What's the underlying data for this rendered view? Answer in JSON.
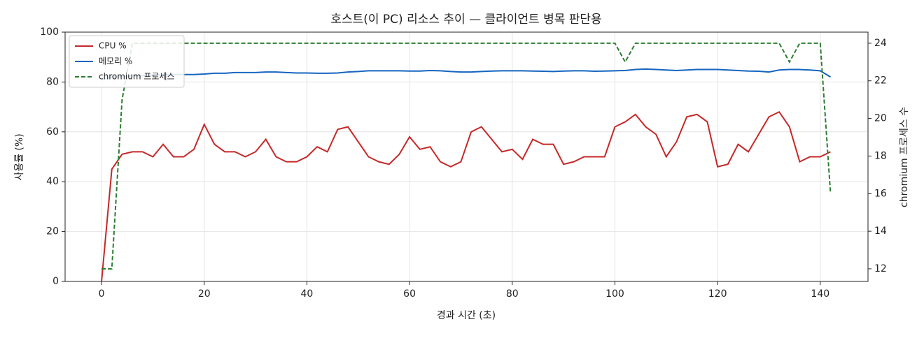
{
  "chart_data": {
    "type": "line",
    "title": "호스트(이 PC) 리소스 추이 — 클라이언트 병목 판단용",
    "x_label": "경과 시간 (초)",
    "y_label": "사용률 (%)",
    "y2_label": "chromium 프로세스 수",
    "x": [
      0,
      2,
      4,
      6,
      8,
      10,
      12,
      14,
      16,
      18,
      20,
      22,
      24,
      26,
      28,
      30,
      32,
      34,
      36,
      38,
      40,
      42,
      44,
      46,
      48,
      50,
      52,
      54,
      56,
      58,
      60,
      62,
      64,
      66,
      68,
      70,
      72,
      74,
      76,
      78,
      80,
      82,
      84,
      86,
      88,
      90,
      92,
      94,
      96,
      98,
      100,
      102,
      104,
      106,
      108,
      110,
      112,
      114,
      116,
      118,
      120,
      122,
      124,
      126,
      128,
      130,
      132,
      134,
      136,
      138,
      140,
      142
    ],
    "series": [
      {
        "name": "CPU %",
        "color": "#c62828",
        "style": "solid",
        "values": [
          0,
          45,
          51,
          52,
          52,
          50,
          55,
          50,
          50,
          53,
          63,
          55,
          52,
          52,
          50,
          52,
          57,
          50,
          48,
          48,
          50,
          54,
          52,
          61,
          62,
          56,
          50,
          48,
          47,
          51,
          58,
          53,
          54,
          48,
          46,
          48,
          60,
          62,
          57,
          52,
          53,
          49,
          57,
          55,
          55,
          47,
          48,
          50,
          50,
          50,
          62,
          64,
          67,
          62,
          59,
          50,
          56,
          66,
          67,
          64,
          46,
          47,
          55,
          52,
          59,
          66,
          68,
          62,
          48,
          50,
          50,
          52
        ]
      },
      {
        "name": "메모리 %",
        "color": "#1565c0",
        "style": "solid",
        "values": [
          81,
          82,
          82,
          82.5,
          82.5,
          82.8,
          82.8,
          83,
          83,
          83,
          83.2,
          83.5,
          83.5,
          83.8,
          83.8,
          83.8,
          84,
          84,
          83.8,
          83.6,
          83.6,
          83.5,
          83.5,
          83.6,
          84,
          84.2,
          84.5,
          84.5,
          84.5,
          84.5,
          84.4,
          84.4,
          84.6,
          84.5,
          84.2,
          84,
          84,
          84.2,
          84.4,
          84.5,
          84.5,
          84.5,
          84.4,
          84.3,
          84.2,
          84.4,
          84.5,
          84.5,
          84.3,
          84.4,
          84.5,
          84.6,
          85,
          85.2,
          85,
          84.8,
          84.6,
          84.8,
          85,
          85,
          85,
          84.8,
          84.6,
          84.4,
          84.3,
          84,
          84.8,
          85,
          85,
          84.8,
          84.5,
          82
        ]
      },
      {
        "name": "chromium 프로세스",
        "color": "#2e7d32",
        "style": "dashed",
        "axis": "y2",
        "values": [
          12,
          12,
          21,
          24,
          24,
          24,
          24,
          24,
          24,
          24,
          24,
          24,
          24,
          24,
          24,
          24,
          24,
          24,
          24,
          24,
          24,
          24,
          24,
          24,
          24,
          24,
          24,
          24,
          24,
          24,
          24,
          24,
          24,
          24,
          24,
          24,
          24,
          24,
          24,
          24,
          24,
          24,
          24,
          24,
          24,
          24,
          24,
          24,
          24,
          24,
          24,
          23,
          24,
          24,
          24,
          24,
          24,
          24,
          24,
          24,
          24,
          24,
          24,
          24,
          24,
          24,
          24,
          23,
          24,
          24,
          24,
          16
        ]
      }
    ],
    "xlim": [
      -7.1,
      149.3
    ],
    "xticks": [
      0,
      20,
      40,
      60,
      80,
      100,
      120,
      140
    ],
    "ylim": [
      0,
      100
    ],
    "yticks": [
      0,
      20,
      40,
      60,
      80,
      100
    ],
    "y2lim": [
      11.33,
      24.59
    ],
    "y2ticks": [
      12,
      14,
      16,
      18,
      20,
      22,
      24
    ],
    "grid": true,
    "legend": "upper left"
  }
}
